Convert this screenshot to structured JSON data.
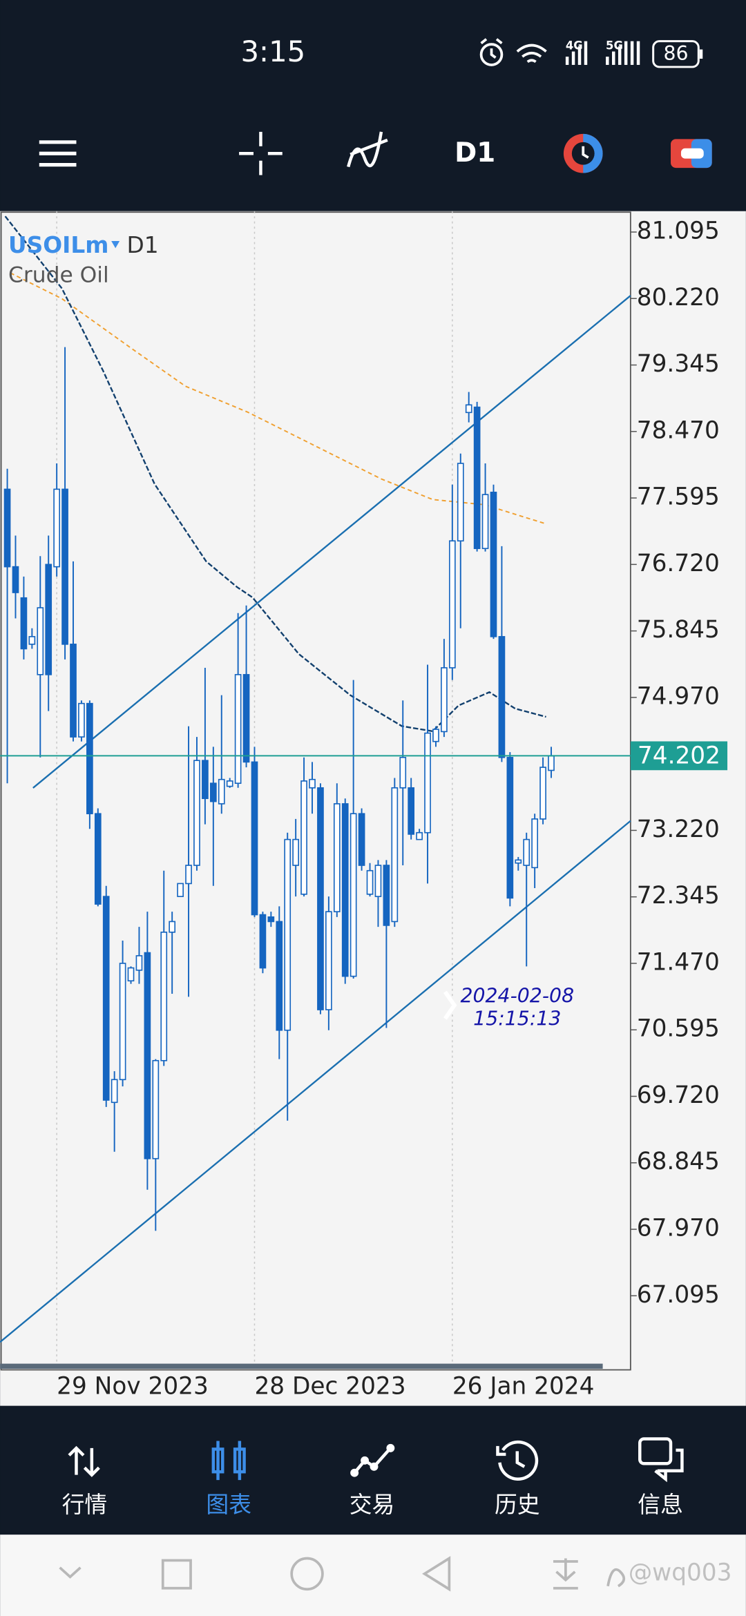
{
  "status_bar": {
    "time": "3:15",
    "network": [
      "4G",
      "5G"
    ],
    "battery": "86"
  },
  "toolbar": {
    "timeframe": "D1"
  },
  "chart_data": {
    "type": "candlestick",
    "symbol": "USOILm",
    "timeframe": "D1",
    "description": "Crude Oil",
    "categories": [
      null,
      null,
      null,
      null,
      null,
      null,
      "29 Nov 2023",
      null,
      null,
      null,
      null,
      null,
      null,
      null,
      null,
      null,
      null,
      null,
      null,
      null,
      null,
      null,
      null,
      null,
      null,
      null,
      null,
      null,
      null,
      null,
      "28 Dec 2023",
      null,
      null,
      null,
      null,
      null,
      null,
      null,
      null,
      null,
      null,
      null,
      null,
      null,
      null,
      null,
      null,
      null,
      null,
      null,
      null,
      null,
      null,
      null,
      "26 Jan 2024",
      null,
      null,
      null,
      null,
      null,
      null,
      null,
      null,
      null,
      null,
      null,
      null
    ],
    "open": [
      77.71,
      76.69,
      76.28,
      75.67,
      75.27,
      76.72,
      76.69,
      77.71,
      75.67,
      74.45,
      74.89,
      73.44,
      72.35,
      69.64,
      69.94,
      71.24,
      71.38,
      71.61,
      68.9,
      70.19,
      71.88,
      72.35,
      72.52,
      72.76,
      74.14,
      73.84,
      73.57,
      73.8,
      73.84,
      75.27,
      74.12,
      72.11,
      72.08,
      72.02,
      70.59,
      72.76,
      72.38,
      73.78,
      73.78,
      70.86,
      72.15,
      73.57,
      71.3,
      73.44,
      72.38,
      72.35,
      72.76,
      72.02,
      73.78,
      73.78,
      73.1,
      73.19,
      74.39,
      74.52,
      75.36,
      77.03,
      78.72,
      78.79,
      76.93,
      77.67,
      75.77,
      74.18,
      72.79,
      72.76,
      72.73,
      73.37,
      74.01
    ],
    "high": [
      77.98,
      77.1,
      76.56,
      75.88,
      76.83,
      77.1,
      78.05,
      79.58,
      76.76,
      74.93,
      74.93,
      73.51,
      72.49,
      70.05,
      71.77,
      71.43,
      71.95,
      72.15,
      70.21,
      72.69,
      72.15,
      72.52,
      74.59,
      74.45,
      75.36,
      74.32,
      75.0,
      73.91,
      76.08,
      76.18,
      74.32,
      72.15,
      72.15,
      72.22,
      73.19,
      73.37,
      74.18,
      74.12,
      73.84,
      72.35,
      73.84,
      73.64,
      75.2,
      73.51,
      72.79,
      72.83,
      72.83,
      73.91,
      74.93,
      73.91,
      73.24,
      75.4,
      74.59,
      75.74,
      77.77,
      78.18,
      78.99,
      78.86,
      78.05,
      77.77,
      76.96,
      74.25,
      72.87,
      73.19,
      73.44,
      74.18,
      74.32
    ],
    "low": [
      73.84,
      76.01,
      75.47,
      75.61,
      74.18,
      74.79,
      76.56,
      75.47,
      74.39,
      74.39,
      73.24,
      72.22,
      69.58,
      68.99,
      69.85,
      71.2,
      71.2,
      68.49,
      67.95,
      70.12,
      71.07,
      72.35,
      71.03,
      72.69,
      73.3,
      72.49,
      73.44,
      73.78,
      73.78,
      74.05,
      72.08,
      71.34,
      71.95,
      70.21,
      69.4,
      72.35,
      72.35,
      73.44,
      70.8,
      70.59,
      72.08,
      71.2,
      71.27,
      72.69,
      72.35,
      71.95,
      70.62,
      71.95,
      72.76,
      73.1,
      73.1,
      72.52,
      74.32,
      74.45,
      75.2,
      75.88,
      78.59,
      76.89,
      76.89,
      75.74,
      74.12,
      72.22,
      72.69,
      71.43,
      72.46,
      73.3,
      73.91
    ],
    "close": [
      76.69,
      76.35,
      75.61,
      75.77,
      76.15,
      75.27,
      77.71,
      75.67,
      74.45,
      74.89,
      73.44,
      72.25,
      69.67,
      69.94,
      71.47,
      71.41,
      71.57,
      68.9,
      70.19,
      71.88,
      72.02,
      72.52,
      72.76,
      74.14,
      73.64,
      73.6,
      73.89,
      73.87,
      75.27,
      74.12,
      72.11,
      71.41,
      72.02,
      70.59,
      73.1,
      73.1,
      73.87,
      73.89,
      70.86,
      72.15,
      73.57,
      71.3,
      73.44,
      72.76,
      72.69,
      72.76,
      71.97,
      73.78,
      74.18,
      73.17,
      73.19,
      74.5,
      74.55,
      75.36,
      77.03,
      78.05,
      78.82,
      76.93,
      77.64,
      75.77,
      74.18,
      72.33,
      72.83,
      73.1,
      73.37,
      74.05,
      74.2
    ],
    "up_color": "#ffffff",
    "down_color": "#1565c0",
    "ylim": [
      66.12,
      81.37
    ],
    "yticks": [
      81.095,
      {
        "value": 80.22,
        "label": "80.220"
      },
      79.345,
      {
        "value": 78.47,
        "label": "78.470"
      },
      77.595,
      {
        "value": 76.72,
        "label": "76.720"
      },
      75.845,
      {
        "value": 74.97,
        "label": "74.970"
      },
      {
        "value": 73.22,
        "label": "73.220"
      },
      72.345,
      {
        "value": 71.47,
        "label": "71.470"
      },
      70.595,
      {
        "value": 69.72,
        "label": "69.720"
      },
      68.845,
      {
        "value": 67.97,
        "label": "67.970"
      },
      67.095
    ],
    "current_price": 74.202,
    "price_line_color": "#1e9e94",
    "annotation": {
      "date": "2024-02-08",
      "time": "15:15:13"
    }
  },
  "nav": [
    "行情",
    "图表",
    "交易",
    "历史",
    "信息"
  ],
  "watermark": "@wq003"
}
